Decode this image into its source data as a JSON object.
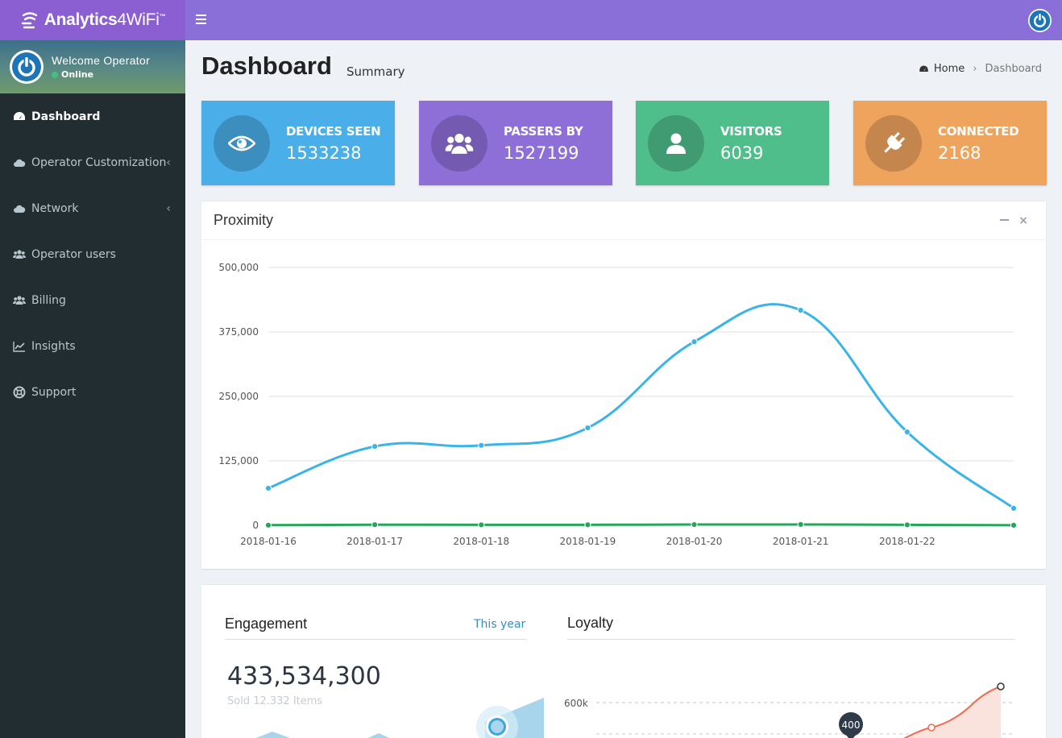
{
  "brand": {
    "name_bold": "Analytics",
    "name_light": "4WiFi",
    "tm": "™"
  },
  "user": {
    "welcome": "Welcome Operator",
    "status": "Online"
  },
  "menu": [
    {
      "label": "Dashboard",
      "icon": "dashboard-icon",
      "active": true
    },
    {
      "label": "Operator Customization",
      "icon": "cloud-icon",
      "submenu": true
    },
    {
      "label": "Network",
      "icon": "cloud-icon",
      "submenu": true
    },
    {
      "label": "Operator users",
      "icon": "users-icon"
    },
    {
      "label": "Billing",
      "icon": "users-icon"
    },
    {
      "label": "Insights",
      "icon": "line-chart-icon"
    },
    {
      "label": "Support",
      "icon": "lifebuoy-icon"
    }
  ],
  "header": {
    "title": "Dashboard",
    "subtitle": "Summary"
  },
  "breadcrumb": {
    "home": "Home",
    "current": "Dashboard"
  },
  "stats": [
    {
      "label": "DEVICES SEEN",
      "value": "1533238",
      "color": "#4aaee8",
      "icon": "eye-icon"
    },
    {
      "label": "PASSERS BY",
      "value": "1527199",
      "color": "#8e6fd8",
      "icon": "users-icon"
    },
    {
      "label": "VISITORS",
      "value": "6039",
      "color": "#4fbe8b",
      "icon": "user-icon"
    },
    {
      "label": "CONNECTED",
      "value": "2168",
      "color": "#efa45e",
      "icon": "plug-icon"
    }
  ],
  "proximity": {
    "title": "Proximity"
  },
  "chart_data": {
    "type": "line",
    "title": "Proximity",
    "categories": [
      "2018-01-16",
      "2018-01-17",
      "2018-01-18",
      "2018-01-19",
      "2018-01-20",
      "2018-01-21",
      "2018-01-22",
      ""
    ],
    "yticks": [
      "0",
      "125,000",
      "250,000",
      "375,000",
      "500,000"
    ],
    "ylim": [
      0,
      500000
    ],
    "grid": true,
    "series": [
      {
        "values": [
          72000,
          153000,
          155000,
          189000,
          356000,
          417000,
          181000,
          33000
        ],
        "color": "#3ab4e8"
      },
      {
        "values": [
          300,
          1200,
          900,
          1000,
          1500,
          1600,
          900,
          200
        ],
        "color": "#26a65b"
      }
    ]
  },
  "engagement": {
    "title": "Engagement",
    "period": "This year",
    "value": "433,534,300",
    "sub": "Sold 12.332 Items"
  },
  "loyalty": {
    "title": "Loyalty",
    "ytick": "600k",
    "tooltip": "400"
  }
}
